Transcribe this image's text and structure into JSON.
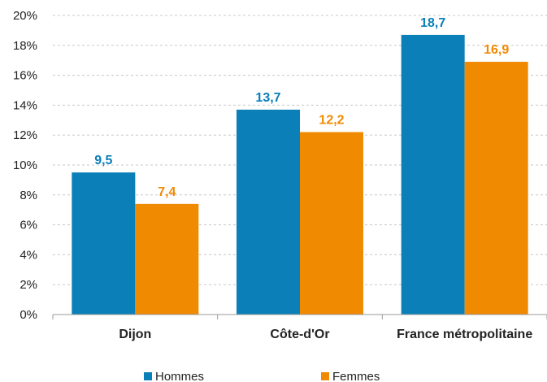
{
  "chart_data": {
    "type": "bar",
    "categories": [
      "Dijon",
      "Côte-d'Or",
      "France métropolitaine"
    ],
    "series": [
      {
        "name": "Hommes",
        "values": [
          9.5,
          13.7,
          18.7
        ],
        "labels": [
          "9,5",
          "13,7",
          "18,7"
        ],
        "color": "#0a7fb8"
      },
      {
        "name": "Femmes",
        "values": [
          7.4,
          12.2,
          16.9
        ],
        "labels": [
          "7,4",
          "12,2",
          "16,9"
        ],
        "color": "#f08a00"
      }
    ],
    "ylim": [
      0,
      20
    ],
    "yticks": [
      {
        "value": 0,
        "label": "0%"
      },
      {
        "value": 2,
        "label": "2%"
      },
      {
        "value": 4,
        "label": "4%"
      },
      {
        "value": 6,
        "label": "6%"
      },
      {
        "value": 8,
        "label": "8%"
      },
      {
        "value": 10,
        "label": "10%"
      },
      {
        "value": 12,
        "label": "12%"
      },
      {
        "value": 14,
        "label": "14%"
      },
      {
        "value": 16,
        "label": "16%"
      },
      {
        "value": 18,
        "label": "18%"
      },
      {
        "value": 20,
        "label": "20%"
      }
    ],
    "grid": true,
    "legend_position": "bottom"
  }
}
